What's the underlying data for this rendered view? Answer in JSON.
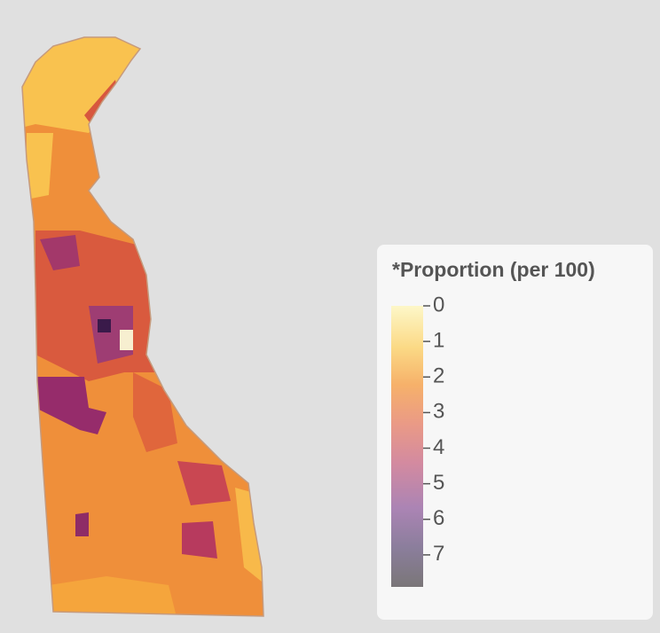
{
  "legend": {
    "title": "*Proportion (per 100)",
    "ticks": [
      0,
      1,
      2,
      3,
      4,
      5,
      6,
      7
    ],
    "lim": [
      0,
      7.9
    ]
  }
}
